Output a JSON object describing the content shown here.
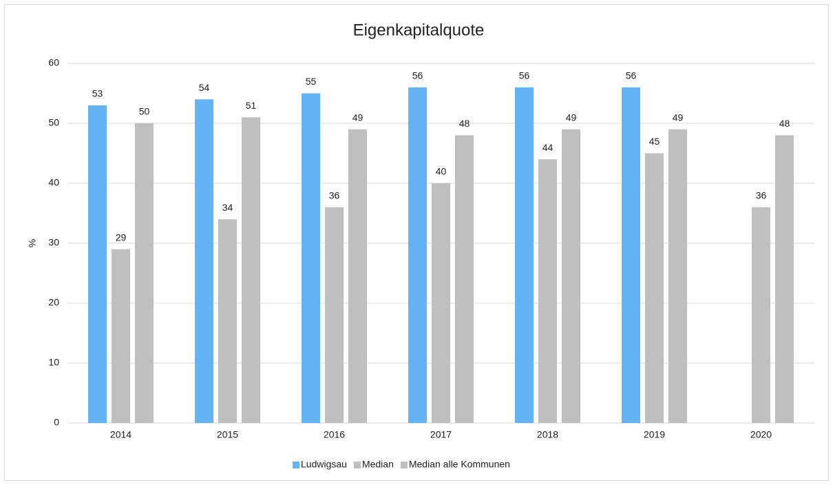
{
  "chart_data": {
    "type": "bar",
    "title": "Eigenkapitalquote",
    "y_label": "%",
    "categories": [
      "2014",
      "2015",
      "2016",
      "2017",
      "2018",
      "2019",
      "2020"
    ],
    "series": [
      {
        "name": "Ludwigsau",
        "color": "#63b3f5",
        "values": [
          53,
          54,
          55,
          56,
          56,
          56,
          null
        ]
      },
      {
        "name": "Median",
        "color": "#bfbfbf",
        "values": [
          29,
          34,
          36,
          40,
          44,
          45,
          36
        ]
      },
      {
        "name": "Median alle Kommunen",
        "color": "#bfbfbf",
        "values": [
          50,
          51,
          49,
          48,
          49,
          49,
          48
        ]
      }
    ],
    "ylim": [
      0,
      60
    ],
    "yticks": [
      0,
      10,
      20,
      30,
      40,
      50,
      60
    ],
    "grid": true,
    "legend": "bottom"
  }
}
